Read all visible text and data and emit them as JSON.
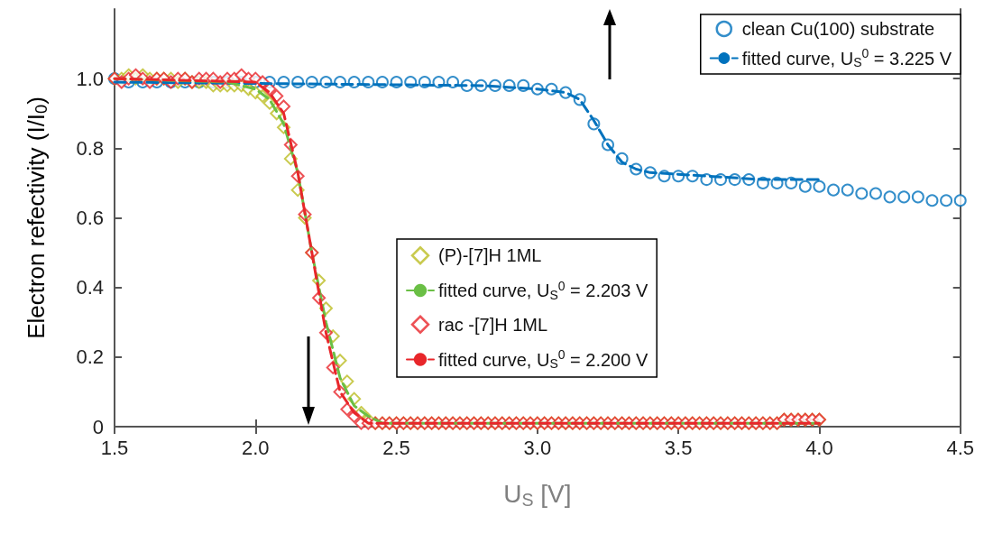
{
  "chart_data": {
    "type": "scatter",
    "xlabel": "U$_{S}$ [V]",
    "ylabel": "Electron refectivity (I/I$_{0}$)",
    "xlim": [
      1.5,
      4.5
    ],
    "xticks": [
      1.5,
      {
        "value": 2,
        "label": "2.0"
      },
      2.5,
      {
        "value": 3,
        "label": "3.0"
      },
      3.5,
      {
        "value": 4,
        "label": "4.0"
      },
      4.5
    ],
    "ylim": [
      0,
      1.2
    ],
    "yticks": [
      0,
      0.2,
      0.4,
      0.6,
      0.8,
      {
        "value": 1,
        "label": "1.0"
      }
    ],
    "grid": false,
    "legend": "top right",
    "x": [
      1.5,
      1.525,
      1.55,
      1.575,
      1.6,
      1.625,
      1.65,
      1.675,
      1.7,
      1.725,
      1.75,
      1.775,
      1.8,
      1.825,
      1.85,
      1.875,
      1.9,
      1.925,
      1.95,
      1.975,
      2.0,
      2.025,
      2.05,
      2.075,
      2.1,
      2.125,
      2.15,
      2.175,
      2.2,
      2.225,
      2.25,
      2.275,
      2.3,
      2.325,
      2.35,
      2.375,
      2.4,
      2.425,
      2.45,
      2.475,
      2.5,
      2.525,
      2.55,
      2.575,
      2.6,
      2.625,
      2.65,
      2.675,
      2.7,
      2.725,
      2.75,
      2.775,
      2.8,
      2.825,
      2.85,
      2.875,
      2.9,
      2.925,
      2.95,
      2.975,
      3.0,
      3.025,
      3.05,
      3.075,
      3.1,
      3.125,
      3.15,
      3.175,
      3.2,
      3.225,
      3.25,
      3.275,
      3.3,
      3.325,
      3.35,
      3.375,
      3.4,
      3.425,
      3.45,
      3.475,
      3.5,
      3.525,
      3.55,
      3.575,
      3.6,
      3.625,
      3.65,
      3.675,
      3.7,
      3.725,
      3.75,
      3.775,
      3.8,
      3.825,
      3.85,
      3.875,
      3.9,
      3.925,
      3.95,
      3.975,
      4.0
    ],
    "series": [
      {
        "name": "clean Cu(100) substrate",
        "type": "scatter",
        "marker": "circle",
        "color": "#0072bd",
        "x": [
          1.5,
          1.55,
          1.6,
          1.65,
          1.7,
          1.75,
          1.8,
          1.85,
          1.9,
          1.95,
          2.0,
          2.05,
          2.1,
          2.15,
          2.2,
          2.25,
          2.3,
          2.35,
          2.4,
          2.45,
          2.5,
          2.55,
          2.6,
          2.65,
          2.7,
          2.75,
          2.8,
          2.85,
          2.9,
          2.95,
          3.0,
          3.05,
          3.1,
          3.15,
          3.2,
          3.25,
          3.3,
          3.35,
          3.4,
          3.45,
          3.5,
          3.55,
          3.6,
          3.65,
          3.7,
          3.75,
          3.8,
          3.85,
          3.9,
          3.95,
          4.0,
          4.05,
          4.1,
          4.15,
          4.2,
          4.25,
          4.3,
          4.35,
          4.4,
          4.45,
          4.5
        ],
        "values": [
          1.0,
          0.99,
          0.99,
          0.99,
          0.99,
          0.99,
          0.99,
          0.99,
          0.99,
          0.99,
          0.99,
          0.99,
          0.99,
          0.99,
          0.99,
          0.99,
          0.99,
          0.99,
          0.99,
          0.99,
          0.99,
          0.99,
          0.99,
          0.99,
          0.99,
          0.98,
          0.98,
          0.98,
          0.98,
          0.98,
          0.97,
          0.97,
          0.96,
          0.94,
          0.87,
          0.81,
          0.77,
          0.74,
          0.73,
          0.72,
          0.72,
          0.72,
          0.71,
          0.71,
          0.71,
          0.71,
          0.7,
          0.7,
          0.7,
          0.69,
          0.69,
          0.68,
          0.68,
          0.67,
          0.67,
          0.66,
          0.66,
          0.66,
          0.65,
          0.65,
          0.65
        ]
      },
      {
        "name": "fitted curve, U$_{S}$$^{0}$ = 3.225 V",
        "type": "line",
        "marker": "none",
        "line_style": "dashed",
        "color": "#0072bd",
        "x": [
          1.5,
          2.8,
          3.0,
          3.1,
          3.15,
          3.2,
          3.25,
          3.3,
          3.35,
          3.4,
          3.6,
          3.8,
          4.0
        ],
        "values": [
          0.99,
          0.98,
          0.97,
          0.96,
          0.94,
          0.88,
          0.81,
          0.76,
          0.74,
          0.73,
          0.72,
          0.71,
          0.71
        ]
      },
      {
        "name": "(P)-[7]H 1ML",
        "type": "scatter",
        "marker": "diamond",
        "color": "#bcbd22",
        "values": [
          1.0,
          1.0,
          1.01,
          1.0,
          1.01,
          1.0,
          1.0,
          1.0,
          1.0,
          0.99,
          1.0,
          0.99,
          0.99,
          0.99,
          0.98,
          0.98,
          0.98,
          0.98,
          0.98,
          0.97,
          0.96,
          0.95,
          0.93,
          0.9,
          0.86,
          0.77,
          0.68,
          0.6,
          0.5,
          0.42,
          0.34,
          0.26,
          0.19,
          0.13,
          0.08,
          0.04,
          0.02,
          0.01,
          0.01,
          0.01,
          0.01,
          0.01,
          0.01,
          0.01,
          0.01,
          0.01,
          0.01,
          0.01,
          0.01,
          0.01,
          0.01,
          0.01,
          0.01,
          0.01,
          0.01,
          0.01,
          0.01,
          0.01,
          0.01,
          0.01,
          0.01,
          0.01,
          0.01,
          0.01,
          0.01,
          0.01,
          0.01,
          0.01,
          0.01,
          0.01,
          0.01,
          0.01,
          0.01,
          0.01,
          0.01,
          0.01,
          0.01,
          0.01,
          0.01,
          0.01,
          0.01,
          0.01,
          0.01,
          0.01,
          0.01,
          0.01,
          0.01,
          0.01,
          0.01,
          0.01,
          0.01,
          0.01,
          0.01,
          0.01,
          0.01,
          0.02,
          0.02,
          0.02,
          0.02,
          0.02,
          0.02
        ]
      },
      {
        "name": "fitted curve, U$_{S}$$^{0}$ = 2.203 V",
        "type": "line",
        "marker": "none",
        "line_style": "dashed",
        "color": "#6abf45",
        "x": [
          1.5,
          1.9,
          2.0,
          2.05,
          2.1,
          2.15,
          2.2,
          2.25,
          2.3,
          2.35,
          2.4,
          2.45,
          2.5,
          4.0
        ],
        "values": [
          1.0,
          0.99,
          0.97,
          0.94,
          0.87,
          0.73,
          0.5,
          0.3,
          0.14,
          0.06,
          0.03,
          0.01,
          0.01,
          0.01
        ]
      },
      {
        "name": "rac -[7]H 1ML",
        "type": "scatter",
        "marker": "diamond",
        "color": "#e8262a",
        "values": [
          1.0,
          0.99,
          1.0,
          1.01,
          1.0,
          0.99,
          1.0,
          1.0,
          0.99,
          1.0,
          1.0,
          0.99,
          1.0,
          1.0,
          1.0,
          0.99,
          1.0,
          1.0,
          1.01,
          1.0,
          1.0,
          0.99,
          0.97,
          0.95,
          0.92,
          0.81,
          0.72,
          0.61,
          0.5,
          0.37,
          0.27,
          0.17,
          0.1,
          0.05,
          0.03,
          0.01,
          0.01,
          0.01,
          0.01,
          0.01,
          0.01,
          0.01,
          0.01,
          0.01,
          0.01,
          0.01,
          0.01,
          0.01,
          0.01,
          0.01,
          0.01,
          0.01,
          0.01,
          0.01,
          0.01,
          0.01,
          0.01,
          0.01,
          0.01,
          0.01,
          0.01,
          0.01,
          0.01,
          0.01,
          0.01,
          0.01,
          0.01,
          0.01,
          0.01,
          0.01,
          0.01,
          0.01,
          0.01,
          0.01,
          0.01,
          0.01,
          0.01,
          0.01,
          0.01,
          0.01,
          0.01,
          0.01,
          0.01,
          0.01,
          0.01,
          0.01,
          0.01,
          0.01,
          0.01,
          0.01,
          0.01,
          0.01,
          0.01,
          0.01,
          0.01,
          0.02,
          0.02,
          0.02,
          0.02,
          0.02,
          0.02
        ]
      },
      {
        "name": "fitted curve, U$_{S}$$^{0}$ = 2.200 V",
        "type": "line",
        "marker": "none",
        "line_style": "dashed",
        "color": "#e8262a",
        "x": [
          1.5,
          2.0,
          2.05,
          2.1,
          2.15,
          2.2,
          2.25,
          2.3,
          2.35,
          2.4,
          2.45,
          4.0
        ],
        "values": [
          1.0,
          0.99,
          0.96,
          0.9,
          0.73,
          0.5,
          0.27,
          0.1,
          0.04,
          0.01,
          0.01,
          0.01
        ]
      }
    ]
  }
}
